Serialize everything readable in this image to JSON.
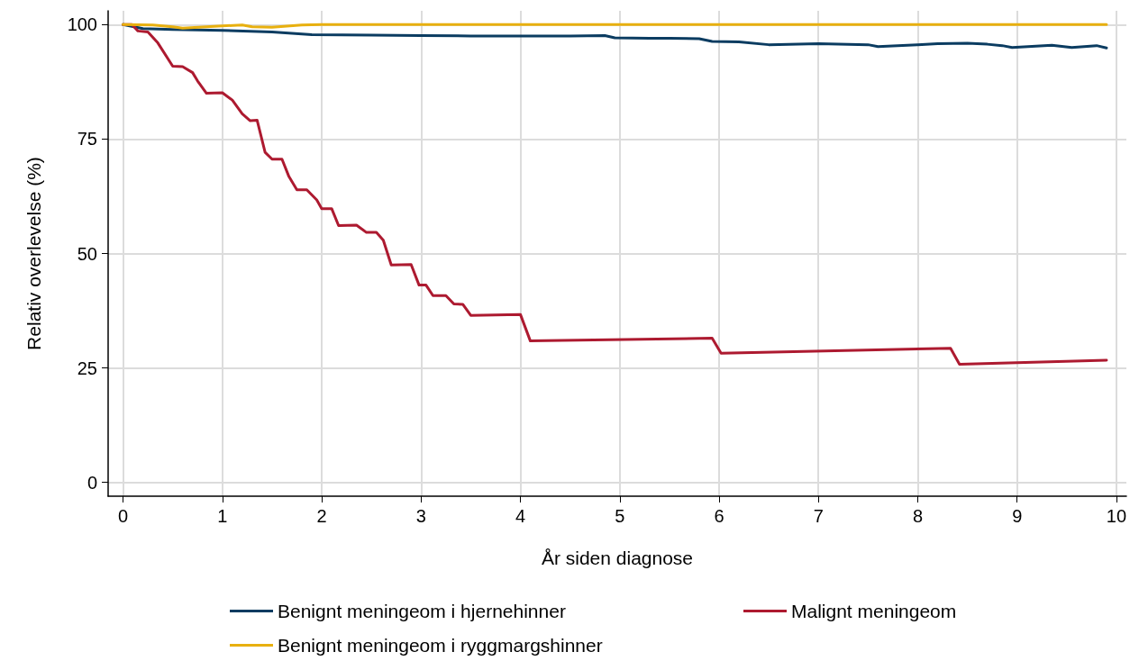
{
  "chart_data": {
    "type": "line",
    "xlabel": "År siden diagnose",
    "ylabel": "Relativ overlevelse (%)",
    "xlim": [
      -0.15,
      10.1
    ],
    "xticks": [
      0,
      1,
      2,
      3,
      4,
      5,
      6,
      7,
      8,
      9,
      10
    ],
    "ylim": [
      -3,
      103
    ],
    "yticks": [
      0,
      25,
      50,
      75,
      100
    ],
    "grid": true,
    "legend": "bottom",
    "marker": "none",
    "line_style": "solid",
    "series": [
      {
        "name": "Benignt meningeom i hjernehinner",
        "color": "#0b3c61",
        "x": [
          0,
          0.2,
          0.5,
          1,
          1.5,
          1.9,
          2.5,
          3,
          3.5,
          4,
          4.5,
          4.85,
          4.95,
          5.3,
          5.5,
          5.8,
          5.93,
          6.2,
          6.5,
          7,
          7.5,
          7.6,
          8,
          8.2,
          8.5,
          8.7,
          8.85,
          8.95,
          9.35,
          9.55,
          9.8,
          9.9
        ],
        "values": [
          100,
          99.1,
          98.9,
          98.7,
          98.4,
          97.8,
          97.7,
          97.6,
          97.5,
          97.5,
          97.5,
          97.6,
          97.1,
          97,
          97,
          96.9,
          96.3,
          96.2,
          95.6,
          95.8,
          95.6,
          95.2,
          95.6,
          95.8,
          95.9,
          95.7,
          95.4,
          95,
          95.5,
          95,
          95.4,
          94.9
        ]
      },
      {
        "name": "Malignt meningeom",
        "color": "#ad1a30",
        "x": [
          0,
          0.09,
          0.15,
          0.25,
          0.35,
          0.5,
          0.6,
          0.7,
          0.75,
          0.84,
          1,
          1.1,
          1.2,
          1.28,
          1.35,
          1.43,
          1.5,
          1.6,
          1.67,
          1.75,
          1.85,
          1.95,
          2,
          2.1,
          2.17,
          2.35,
          2.45,
          2.55,
          2.62,
          2.7,
          2.9,
          2.98,
          3.05,
          3.12,
          3.25,
          3.33,
          3.42,
          3.5,
          4,
          4.1,
          5.93,
          6.02,
          8.33,
          8.42,
          9.9
        ],
        "values": [
          100,
          100,
          98.6,
          98.4,
          96,
          90.9,
          90.8,
          89.5,
          87.7,
          85,
          85.1,
          83.5,
          80.5,
          79,
          79.1,
          72.1,
          70.6,
          70.6,
          66.8,
          63.9,
          63.9,
          61.7,
          59.8,
          59.8,
          56.1,
          56.2,
          54.6,
          54.6,
          52.9,
          47.5,
          47.6,
          43.1,
          43.1,
          40.8,
          40.8,
          39,
          38.9,
          36.5,
          36.7,
          30.9,
          31.5,
          28.2,
          29.3,
          25.8,
          26.7
        ]
      },
      {
        "name": "Benignt meningeom i ryggmargshinner",
        "color": "#e8b00f",
        "x": [
          0,
          0.3,
          0.5,
          0.6,
          1,
          1.2,
          1.3,
          1.5,
          1.8,
          2,
          9.9
        ],
        "values": [
          100,
          99.9,
          99.5,
          99.2,
          99.7,
          99.9,
          99.5,
          99.4,
          99.9,
          100,
          100
        ]
      }
    ]
  }
}
